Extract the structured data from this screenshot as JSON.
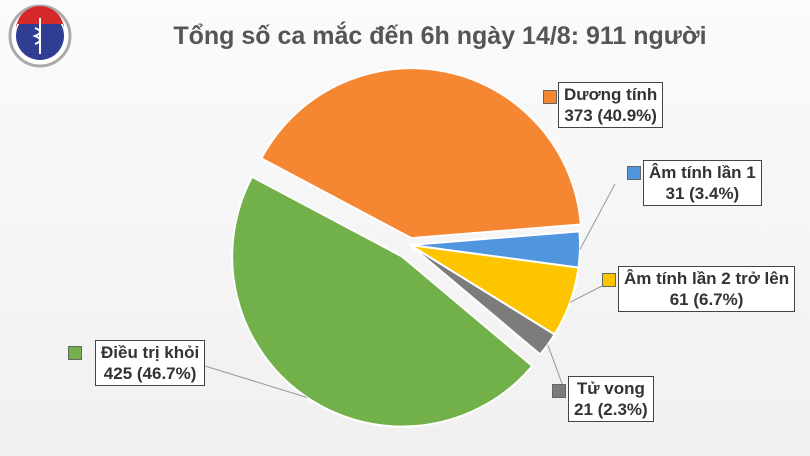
{
  "title": "Tổng số ca mắc đến 6h ngày 14/8: 911 người",
  "logo": {
    "top_text": "BỘ Y TẾ",
    "bottom_text": "MINISTRY OF HEALTH"
  },
  "chart_data": {
    "type": "pie",
    "title": "Tổng số ca mắc đến 6h ngày 14/8: 911 người",
    "total": 911,
    "slices": [
      {
        "name": "Dương tính",
        "value": 373,
        "percent_label": "373 (40.9%)",
        "color": "#f58733"
      },
      {
        "name": "Âm tính lần 1",
        "value": 31,
        "percent_label": "31 (3.4%)",
        "color": "#4f96de"
      },
      {
        "name": "Âm tính lần 2 trở lên",
        "value": 61,
        "percent_label": "61 (6.7%)",
        "color": "#fdc400"
      },
      {
        "name": "Tử vong",
        "value": 21,
        "percent_label": "21 (2.3%)",
        "color": "#7c7c7c"
      },
      {
        "name": "Điều trị khỏi",
        "value": 425,
        "percent_label": "425 (46.7%)",
        "color": "#72b14a"
      }
    ]
  }
}
